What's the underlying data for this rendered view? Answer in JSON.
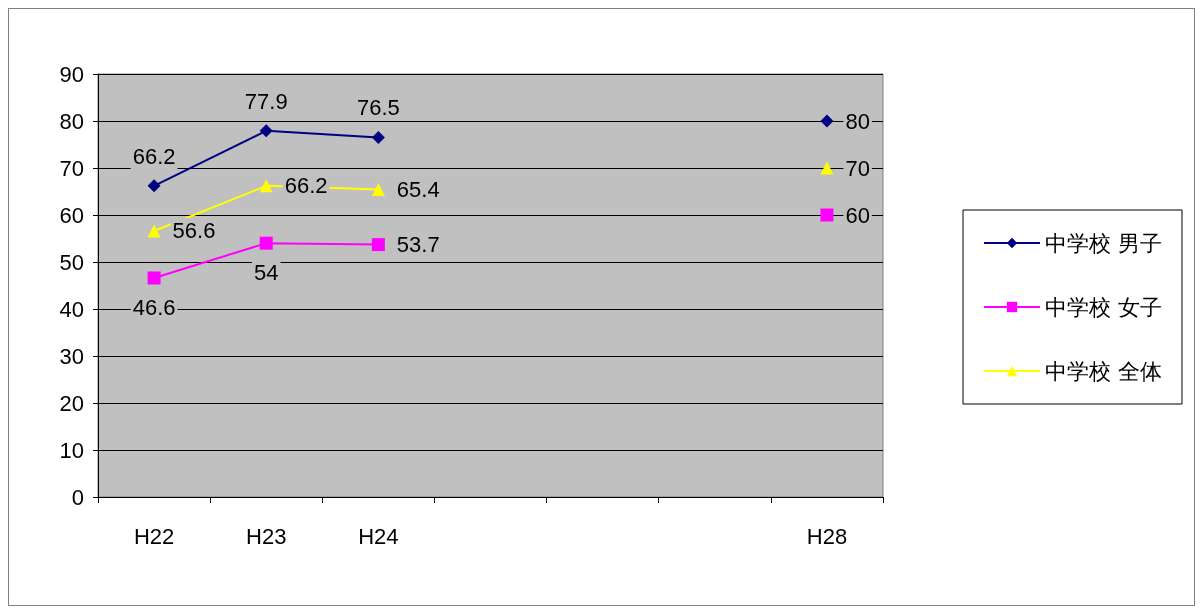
{
  "chart_data": {
    "type": "line",
    "categories": [
      "H22",
      "H23",
      "H24",
      null,
      null,
      null,
      "H28"
    ],
    "series": [
      {
        "name": "中学校 男子",
        "color": "#000080",
        "marker": "diamond",
        "values": [
          66.2,
          77.9,
          76.5,
          null,
          null,
          null,
          80
        ]
      },
      {
        "name": "中学校 女子",
        "color": "#ff00ff",
        "marker": "square",
        "values": [
          46.6,
          54,
          53.7,
          null,
          null,
          null,
          60
        ]
      },
      {
        "name": "中学校 全体",
        "color": "#ffff00",
        "marker": "triangle",
        "values": [
          56.6,
          66.2,
          65.4,
          null,
          null,
          null,
          70
        ]
      }
    ],
    "ylim": [
      0,
      90
    ],
    "yticks": [
      0,
      10,
      20,
      30,
      40,
      50,
      60,
      70,
      80,
      90
    ],
    "grid": "y",
    "legend": "right",
    "data_labels": true,
    "line_style": "solid"
  }
}
